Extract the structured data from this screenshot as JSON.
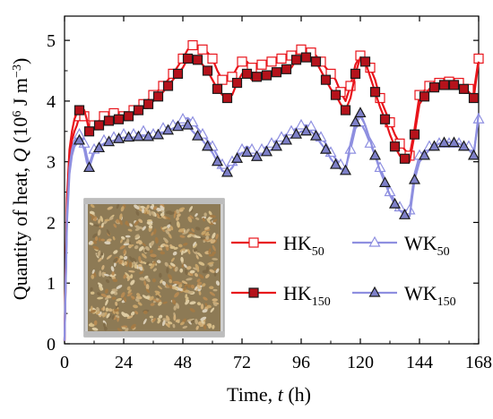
{
  "chart_data": {
    "type": "line",
    "xlabel": "Time, t (h)",
    "ylabel": "Quantity of heat, Q (10^6 J m^-3)",
    "xlim": [
      0,
      168
    ],
    "ylim": [
      0,
      5.4
    ],
    "x_ticks": [
      0,
      24,
      48,
      72,
      96,
      120,
      144,
      168
    ],
    "y_ticks": [
      0,
      1,
      2,
      3,
      4,
      5
    ],
    "legend_position": "lower-right",
    "inset": "photo of grain sample",
    "series": [
      {
        "name": "HK50",
        "label_main": "HK",
        "label_sub": "50",
        "color": "#e8141b",
        "marker": "square-open",
        "x": [
          0,
          1,
          2,
          3,
          4,
          5,
          6,
          7,
          8,
          9,
          10,
          12,
          16,
          20,
          24,
          28,
          32,
          36,
          40,
          44,
          48,
          50,
          52,
          54,
          56,
          58,
          60,
          62,
          64,
          66,
          68,
          70,
          72,
          74,
          76,
          78,
          80,
          84,
          88,
          92,
          94,
          96,
          98,
          100,
          102,
          104,
          106,
          108,
          110,
          112,
          114,
          116,
          118,
          120,
          122,
          124,
          126,
          128,
          130,
          132,
          134,
          136,
          138,
          140,
          142,
          144,
          148,
          152,
          156,
          160,
          164,
          166,
          168
        ],
        "y": [
          0.05,
          2.2,
          3.0,
          3.35,
          3.5,
          3.6,
          3.75,
          3.8,
          3.75,
          3.7,
          3.55,
          3.6,
          3.75,
          3.8,
          3.75,
          3.85,
          3.95,
          4.1,
          4.25,
          4.45,
          4.7,
          4.85,
          4.92,
          4.9,
          4.85,
          4.8,
          4.7,
          4.5,
          4.35,
          4.35,
          4.4,
          4.55,
          4.65,
          4.65,
          4.55,
          4.6,
          4.6,
          4.65,
          4.7,
          4.75,
          4.82,
          4.85,
          4.8,
          4.8,
          4.75,
          4.65,
          4.55,
          4.45,
          4.35,
          4.15,
          4.0,
          4.25,
          4.6,
          4.75,
          4.7,
          4.55,
          4.35,
          4.05,
          3.85,
          3.65,
          3.45,
          3.3,
          3.2,
          3.1,
          3.55,
          4.1,
          4.25,
          4.3,
          4.32,
          4.3,
          4.2,
          4.15,
          4.7
        ],
        "markers_x": [
          6,
          8,
          12,
          16,
          20,
          24,
          28,
          32,
          36,
          40,
          44,
          48,
          52,
          56,
          60,
          64,
          68,
          72,
          76,
          80,
          84,
          88,
          92,
          96,
          100,
          104,
          108,
          112,
          116,
          120,
          124,
          128,
          132,
          136,
          140,
          144,
          148,
          152,
          156,
          160,
          164,
          168
        ]
      },
      {
        "name": "HK150",
        "label_main": "HK",
        "label_sub": "150",
        "color": "#e8141b",
        "marker": "square-filled",
        "x": [
          0,
          1,
          2,
          3,
          4,
          5,
          6,
          7,
          8,
          9,
          10,
          12,
          16,
          20,
          24,
          28,
          32,
          36,
          40,
          44,
          48,
          50,
          52,
          54,
          56,
          58,
          60,
          62,
          64,
          66,
          68,
          70,
          72,
          74,
          76,
          78,
          80,
          84,
          88,
          92,
          94,
          96,
          98,
          100,
          102,
          104,
          106,
          108,
          110,
          112,
          114,
          116,
          118,
          120,
          122,
          124,
          126,
          128,
          130,
          132,
          134,
          136,
          138,
          140,
          142,
          144,
          148,
          152,
          156,
          160,
          164,
          166,
          168
        ],
        "y": [
          0.05,
          2.4,
          3.2,
          3.5,
          3.7,
          3.8,
          3.85,
          3.9,
          3.85,
          3.7,
          3.5,
          3.55,
          3.65,
          3.7,
          3.7,
          3.8,
          3.9,
          4.0,
          4.15,
          4.35,
          4.55,
          4.7,
          4.75,
          4.68,
          4.6,
          4.5,
          4.35,
          4.2,
          4.1,
          4.05,
          4.1,
          4.3,
          4.45,
          4.45,
          4.35,
          4.4,
          4.4,
          4.45,
          4.5,
          4.55,
          4.68,
          4.75,
          4.72,
          4.7,
          4.65,
          4.5,
          4.35,
          4.2,
          4.1,
          3.95,
          3.85,
          4.05,
          4.45,
          4.72,
          4.65,
          4.4,
          4.15,
          3.9,
          3.7,
          3.45,
          3.25,
          3.1,
          3.05,
          3.0,
          3.45,
          3.95,
          4.2,
          4.25,
          4.28,
          4.25,
          4.15,
          4.05,
          4.65
        ],
        "markers_x": [
          6,
          10,
          14,
          18,
          22,
          26,
          30,
          34,
          38,
          42,
          46,
          50,
          54,
          58,
          62,
          66,
          70,
          74,
          78,
          82,
          86,
          90,
          94,
          98,
          102,
          106,
          110,
          114,
          118,
          122,
          126,
          130,
          134,
          138,
          142,
          146,
          150,
          154,
          158,
          162,
          166
        ]
      },
      {
        "name": "WK50",
        "label_main": "WK",
        "label_sub": "50",
        "color": "#8e8fe0",
        "marker": "triangle-open",
        "x": [
          0,
          1,
          2,
          3,
          4,
          5,
          6,
          7,
          8,
          9,
          10,
          12,
          16,
          20,
          24,
          28,
          32,
          36,
          40,
          44,
          48,
          50,
          52,
          54,
          56,
          58,
          60,
          62,
          64,
          66,
          68,
          70,
          72,
          74,
          76,
          78,
          80,
          84,
          88,
          92,
          94,
          96,
          98,
          100,
          102,
          104,
          106,
          108,
          110,
          112,
          114,
          116,
          118,
          120,
          122,
          124,
          126,
          128,
          130,
          132,
          134,
          136,
          138,
          140,
          142,
          144,
          148,
          152,
          156,
          160,
          164,
          166,
          168
        ],
        "y": [
          0.05,
          2.1,
          2.9,
          3.2,
          3.35,
          3.4,
          3.45,
          3.4,
          3.3,
          3.1,
          2.95,
          3.2,
          3.35,
          3.4,
          3.45,
          3.45,
          3.5,
          3.45,
          3.55,
          3.6,
          3.7,
          3.72,
          3.65,
          3.55,
          3.45,
          3.35,
          3.25,
          3.1,
          2.95,
          2.9,
          3.0,
          3.1,
          3.2,
          3.25,
          3.2,
          3.15,
          3.2,
          3.3,
          3.4,
          3.5,
          3.55,
          3.6,
          3.6,
          3.58,
          3.5,
          3.4,
          3.3,
          3.15,
          3.05,
          2.95,
          2.9,
          3.2,
          3.55,
          3.65,
          3.5,
          3.3,
          3.1,
          2.9,
          2.7,
          2.5,
          2.35,
          2.25,
          2.2,
          2.2,
          2.8,
          3.1,
          3.25,
          3.3,
          3.3,
          3.3,
          3.25,
          3.15,
          3.7
        ],
        "markers_x": [
          6,
          8,
          12,
          16,
          20,
          24,
          28,
          32,
          36,
          40,
          44,
          48,
          52,
          56,
          60,
          64,
          68,
          72,
          76,
          80,
          84,
          88,
          92,
          96,
          100,
          104,
          108,
          112,
          116,
          120,
          124,
          128,
          132,
          136,
          140,
          144,
          148,
          152,
          156,
          160,
          164,
          168
        ]
      },
      {
        "name": "WK150",
        "label_main": "WK",
        "label_sub": "150",
        "color": "#8e8fe0",
        "marker": "triangle-filled",
        "x": [
          0,
          1,
          2,
          3,
          4,
          5,
          6,
          7,
          8,
          9,
          10,
          12,
          16,
          20,
          24,
          28,
          32,
          36,
          40,
          44,
          48,
          50,
          52,
          54,
          56,
          58,
          60,
          62,
          64,
          66,
          68,
          70,
          72,
          74,
          76,
          78,
          80,
          84,
          88,
          92,
          94,
          96,
          98,
          100,
          102,
          104,
          106,
          108,
          110,
          112,
          114,
          116,
          118,
          120,
          122,
          124,
          126,
          128,
          130,
          132,
          134,
          136,
          138,
          140,
          142,
          144,
          148,
          152,
          156,
          160,
          164,
          166,
          168
        ],
        "y": [
          0.05,
          2.0,
          2.8,
          3.1,
          3.25,
          3.3,
          3.35,
          3.3,
          3.2,
          3.0,
          2.9,
          3.15,
          3.3,
          3.35,
          3.4,
          3.4,
          3.42,
          3.4,
          3.48,
          3.55,
          3.6,
          3.6,
          3.5,
          3.42,
          3.35,
          3.25,
          3.15,
          3.0,
          2.85,
          2.82,
          2.9,
          3.05,
          3.15,
          3.15,
          3.1,
          3.08,
          3.12,
          3.2,
          3.3,
          3.4,
          3.45,
          3.5,
          3.5,
          3.5,
          3.42,
          3.3,
          3.2,
          3.05,
          2.95,
          2.88,
          2.85,
          3.3,
          3.65,
          3.8,
          3.6,
          3.35,
          3.1,
          2.85,
          2.65,
          2.45,
          2.3,
          2.2,
          2.12,
          2.1,
          2.7,
          3.0,
          3.2,
          3.3,
          3.32,
          3.3,
          3.2,
          3.1,
          3.8
        ],
        "markers_x": [
          6,
          10,
          14,
          18,
          22,
          26,
          30,
          34,
          38,
          42,
          46,
          50,
          54,
          58,
          62,
          66,
          70,
          74,
          78,
          82,
          86,
          90,
          94,
          98,
          102,
          106,
          110,
          114,
          118,
          120,
          126,
          130,
          134,
          138,
          142,
          146,
          150,
          154,
          158,
          162,
          166
        ]
      }
    ]
  }
}
